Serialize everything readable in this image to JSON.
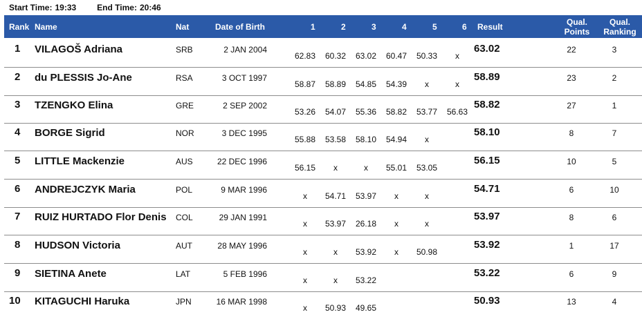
{
  "times": {
    "start_label": "Start Time:",
    "start_value": "19:33",
    "end_label": "End Time:",
    "end_value": "20:46"
  },
  "header": {
    "rank": "Rank",
    "name": "Name",
    "nat": "Nat",
    "dob": "Date of Birth",
    "att1": "1",
    "att2": "2",
    "att3": "3",
    "att4": "4",
    "att5": "5",
    "att6": "6",
    "result": "Result",
    "qual_points_1": "Qual.",
    "qual_points_2": "Points",
    "qual_ranking_1": "Qual.",
    "qual_ranking_2": "Ranking"
  },
  "rows": [
    {
      "rank": "1",
      "name": "VILAGOŠ Adriana",
      "nat": "SRB",
      "dob": "2 JAN 2004",
      "attempts": [
        "62.83",
        "60.32",
        "63.02",
        "60.47",
        "50.33",
        "x"
      ],
      "result": "63.02",
      "qual_points": "22",
      "qual_ranking": "3"
    },
    {
      "rank": "2",
      "name": "du PLESSIS Jo-Ane",
      "nat": "RSA",
      "dob": "3 OCT 1997",
      "attempts": [
        "58.87",
        "58.89",
        "54.85",
        "54.39",
        "x",
        "x"
      ],
      "result": "58.89",
      "qual_points": "23",
      "qual_ranking": "2"
    },
    {
      "rank": "3",
      "name": "TZENGKO Elina",
      "nat": "GRE",
      "dob": "2 SEP 2002",
      "attempts": [
        "53.26",
        "54.07",
        "55.36",
        "58.82",
        "53.77",
        "56.63"
      ],
      "result": "58.82",
      "qual_points": "27",
      "qual_ranking": "1"
    },
    {
      "rank": "4",
      "name": "BORGE Sigrid",
      "nat": "NOR",
      "dob": "3 DEC 1995",
      "attempts": [
        "55.88",
        "53.58",
        "58.10",
        "54.94",
        "x",
        ""
      ],
      "result": "58.10",
      "qual_points": "8",
      "qual_ranking": "7"
    },
    {
      "rank": "5",
      "name": "LITTLE Mackenzie",
      "nat": "AUS",
      "dob": "22 DEC 1996",
      "attempts": [
        "56.15",
        "x",
        "x",
        "55.01",
        "53.05",
        ""
      ],
      "result": "56.15",
      "qual_points": "10",
      "qual_ranking": "5"
    },
    {
      "rank": "6",
      "name": "ANDREJCZYK Maria",
      "nat": "POL",
      "dob": "9 MAR 1996",
      "attempts": [
        "x",
        "54.71",
        "53.97",
        "x",
        "x",
        ""
      ],
      "result": "54.71",
      "qual_points": "6",
      "qual_ranking": "10"
    },
    {
      "rank": "7",
      "name": "RUIZ HURTADO Flor Denis",
      "nat": "COL",
      "dob": "29 JAN 1991",
      "attempts": [
        "x",
        "53.97",
        "26.18",
        "x",
        "x",
        ""
      ],
      "result": "53.97",
      "qual_points": "8",
      "qual_ranking": "6"
    },
    {
      "rank": "8",
      "name": "HUDSON Victoria",
      "nat": "AUT",
      "dob": "28 MAY 1996",
      "attempts": [
        "x",
        "x",
        "53.92",
        "x",
        "50.98",
        ""
      ],
      "result": "53.92",
      "qual_points": "1",
      "qual_ranking": "17"
    },
    {
      "rank": "9",
      "name": "SIETINA Anete",
      "nat": "LAT",
      "dob": "5 FEB 1996",
      "attempts": [
        "x",
        "x",
        "53.22",
        "",
        "",
        ""
      ],
      "result": "53.22",
      "qual_points": "6",
      "qual_ranking": "9"
    },
    {
      "rank": "10",
      "name": "KITAGUCHI Haruka",
      "nat": "JPN",
      "dob": "16 MAR 1998",
      "attempts": [
        "x",
        "50.93",
        "49.65",
        "",
        "",
        ""
      ],
      "result": "50.93",
      "qual_points": "13",
      "qual_ranking": "4"
    }
  ]
}
